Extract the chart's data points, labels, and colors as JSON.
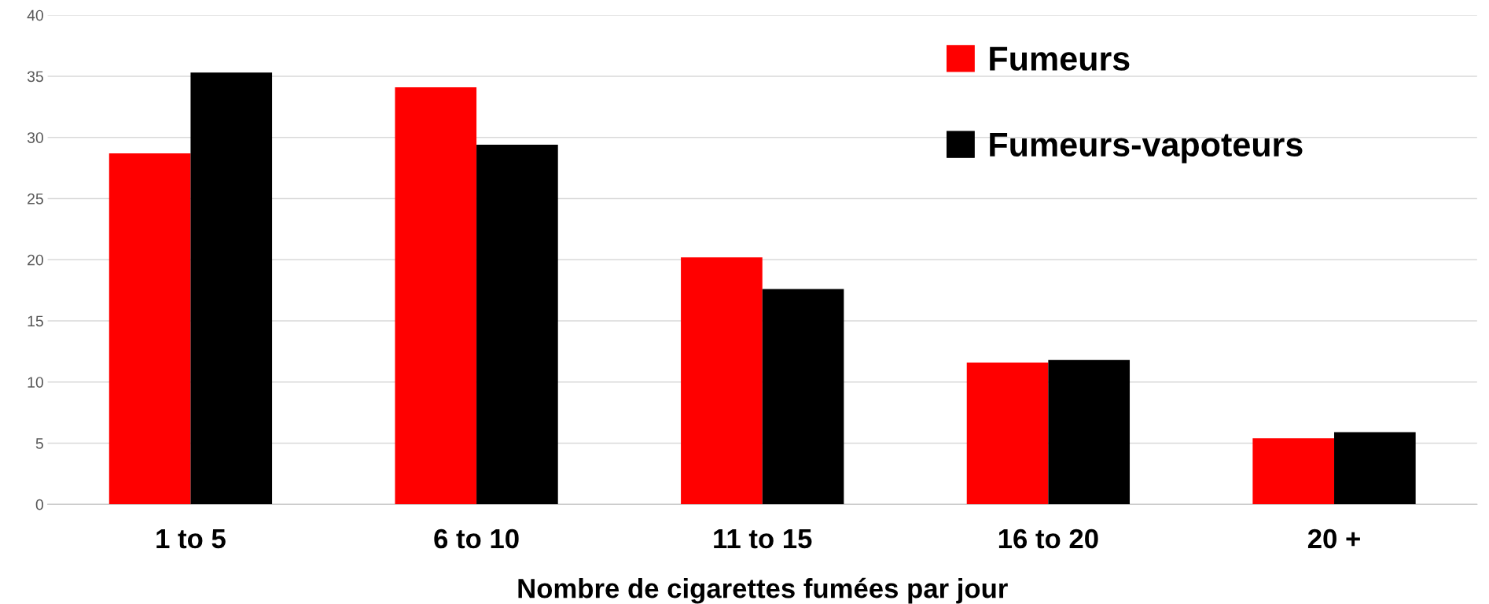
{
  "chart_data": {
    "type": "bar",
    "xlabel": "Nombre de cigarettes fumées par jour",
    "categories": [
      "1 to 5",
      "6 to 10",
      "11 to 15",
      "16 to 20",
      "20 +"
    ],
    "series": [
      {
        "name": "Fumeurs",
        "color": "#ff0000",
        "values": [
          28.7,
          34.1,
          20.2,
          11.6,
          5.4
        ]
      },
      {
        "name": "Fumeurs-vapoteurs",
        "color": "#000000",
        "values": [
          35.3,
          29.4,
          17.6,
          11.8,
          5.9
        ]
      }
    ],
    "ylim": [
      0,
      40
    ],
    "yticks": [
      0,
      5,
      10,
      15,
      20,
      25,
      30,
      35,
      40
    ],
    "grid": "y",
    "legend": "top right"
  }
}
